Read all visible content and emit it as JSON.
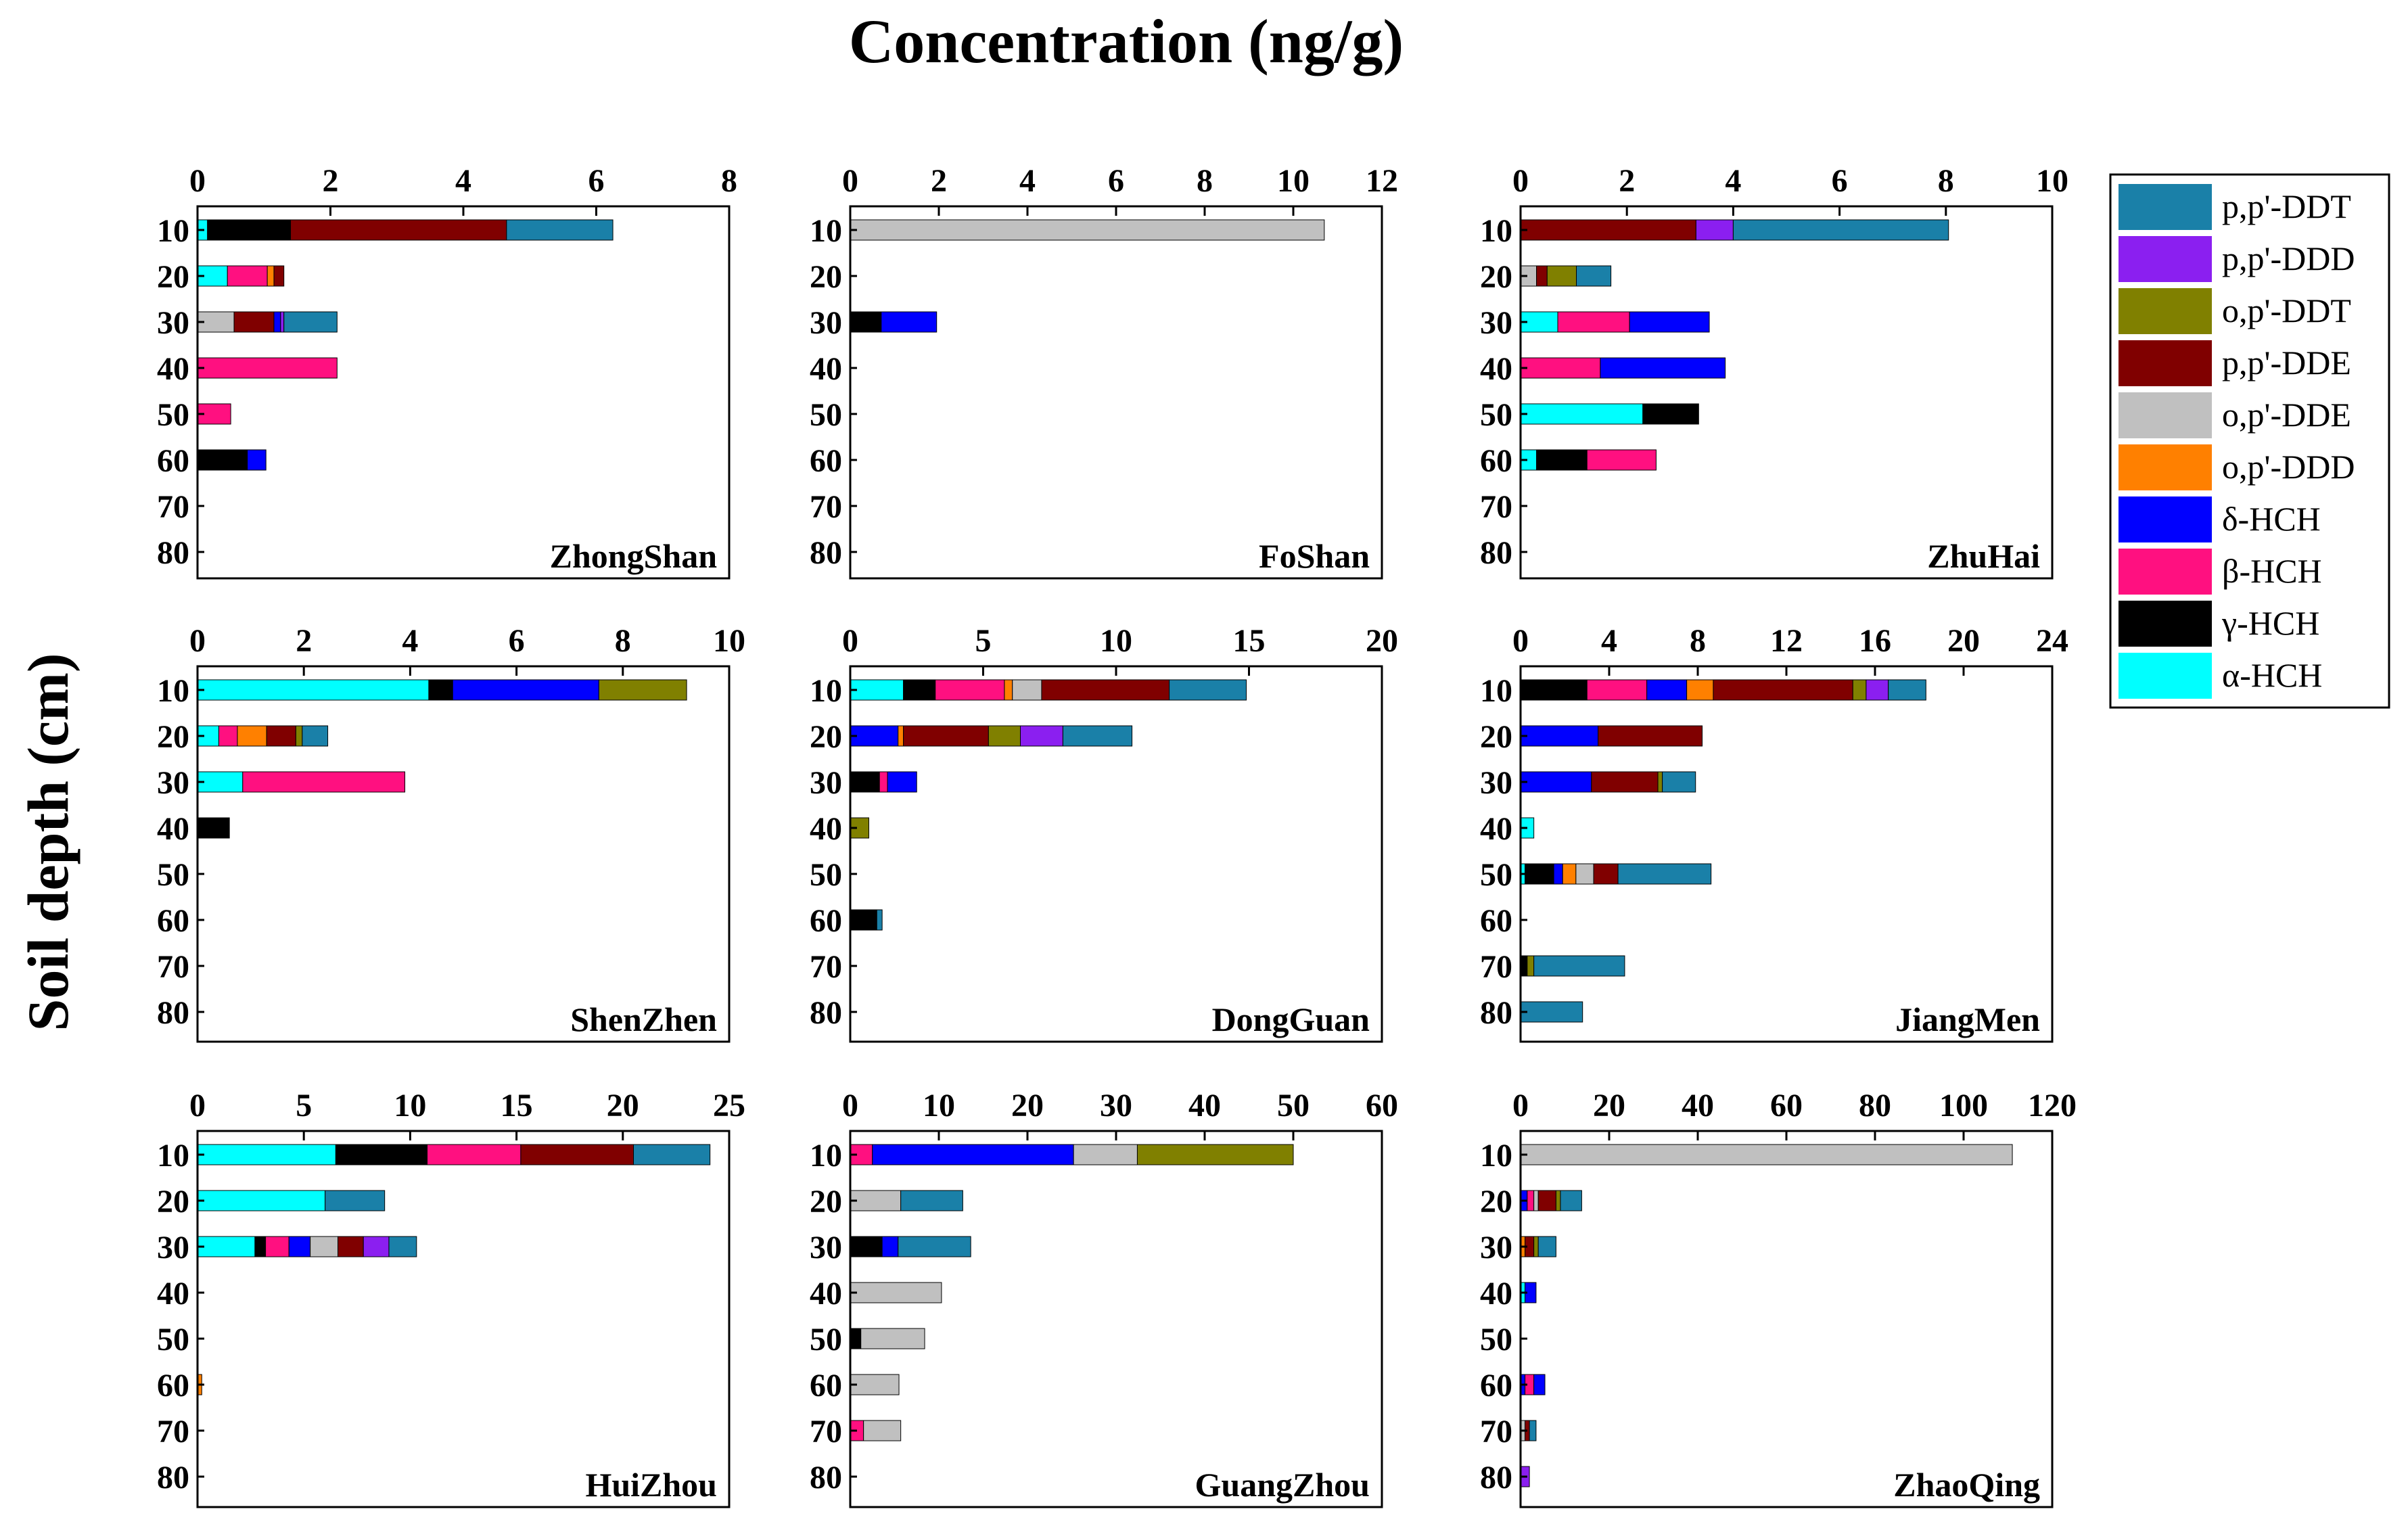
{
  "figure": {
    "title": "Concentration (ng/g)",
    "ylabel": "Soil depth (cm)"
  },
  "chart_data": {
    "type": "bar",
    "stacked": true,
    "orientation": "horizontal",
    "depths": [
      "10",
      "20",
      "30",
      "40",
      "50",
      "60",
      "70",
      "80"
    ],
    "stack_order": [
      "α-HCH",
      "γ-HCH",
      "β-HCH",
      "δ-HCH",
      "o,p'-DDD",
      "o,p'-DDE",
      "p,p'-DDE",
      "o,p'-DDT",
      "p,p'-DDD",
      "p,p'-DDT"
    ],
    "legend": [
      {
        "name": "p,p'-DDT",
        "color": "#1a80a8"
      },
      {
        "name": "p,p'-DDD",
        "color": "#8b1ff0"
      },
      {
        "name": "o,p'-DDT",
        "color": "#808000"
      },
      {
        "name": "p,p'-DDE",
        "color": "#800000"
      },
      {
        "name": "o,p'-DDE",
        "color": "#c0c0c0"
      },
      {
        "name": "o,p'-DDD",
        "color": "#ff8000"
      },
      {
        "name": "δ-HCH",
        "color": "#0000ff"
      },
      {
        "name": "β-HCH",
        "color": "#ff1080"
      },
      {
        "name": "γ-HCH",
        "color": "#000000"
      },
      {
        "name": "α-HCH",
        "color": "#00ffff"
      }
    ],
    "panels": [
      {
        "name": "ZhongShan",
        "xlim": [
          0,
          8
        ],
        "ticks": [
          "0",
          "2",
          "4",
          "6",
          "8"
        ],
        "bars": [
          {
            "depth": "10",
            "segments": [
              [
                "α-HCH",
                0.15
              ],
              [
                "γ-HCH",
                1.25
              ],
              [
                "p,p'-DDE",
                3.25
              ],
              [
                "p,p'-DDT",
                1.6
              ]
            ]
          },
          {
            "depth": "20",
            "segments": [
              [
                "α-HCH",
                0.45
              ],
              [
                "β-HCH",
                0.6
              ],
              [
                "o,p'-DDD",
                0.1
              ],
              [
                "p,p'-DDE",
                0.15
              ]
            ]
          },
          {
            "depth": "30",
            "segments": [
              [
                "o,p'-DDE",
                0.55
              ],
              [
                "p,p'-DDE",
                0.6
              ],
              [
                "δ-HCH",
                0.1
              ],
              [
                "p,p'-DDD",
                0.05
              ],
              [
                "p,p'-DDT",
                0.8
              ]
            ]
          },
          {
            "depth": "40",
            "segments": [
              [
                "β-HCH",
                2.1
              ]
            ]
          },
          {
            "depth": "50",
            "segments": [
              [
                "β-HCH",
                0.5
              ]
            ]
          },
          {
            "depth": "60",
            "segments": [
              [
                "γ-HCH",
                0.75
              ],
              [
                "δ-HCH",
                0.28
              ]
            ]
          }
        ]
      },
      {
        "name": "FoShan",
        "xlim": [
          0,
          12
        ],
        "ticks": [
          "0",
          "2",
          "4",
          "6",
          "8",
          "10",
          "12"
        ],
        "bars": [
          {
            "depth": "10",
            "segments": [
              [
                "o,p'-DDE",
                10.7
              ]
            ]
          },
          {
            "depth": "30",
            "segments": [
              [
                "γ-HCH",
                0.7
              ],
              [
                "δ-HCH",
                1.25
              ]
            ]
          }
        ]
      },
      {
        "name": "ZhuHai",
        "xlim": [
          0,
          10
        ],
        "ticks": [
          "0",
          "2",
          "4",
          "6",
          "8",
          "10"
        ],
        "bars": [
          {
            "depth": "10",
            "segments": [
              [
                "p,p'-DDE",
                3.3
              ],
              [
                "p,p'-DDD",
                0.7
              ],
              [
                "p,p'-DDT",
                4.05
              ]
            ]
          },
          {
            "depth": "20",
            "segments": [
              [
                "o,p'-DDE",
                0.3
              ],
              [
                "p,p'-DDE",
                0.2
              ],
              [
                "o,p'-DDT",
                0.55
              ],
              [
                "p,p'-DDT",
                0.65
              ]
            ]
          },
          {
            "depth": "30",
            "segments": [
              [
                "α-HCH",
                0.7
              ],
              [
                "β-HCH",
                1.35
              ],
              [
                "δ-HCH",
                1.5
              ]
            ]
          },
          {
            "depth": "40",
            "segments": [
              [
                "β-HCH",
                1.5
              ],
              [
                "δ-HCH",
                2.35
              ]
            ]
          },
          {
            "depth": "50",
            "segments": [
              [
                "α-HCH",
                2.3
              ],
              [
                "γ-HCH",
                1.05
              ]
            ]
          },
          {
            "depth": "60",
            "segments": [
              [
                "α-HCH",
                0.3
              ],
              [
                "γ-HCH",
                0.95
              ],
              [
                "β-HCH",
                1.3
              ]
            ]
          }
        ]
      },
      {
        "name": "ShenZhen",
        "xlim": [
          0,
          10
        ],
        "ticks": [
          "0",
          "2",
          "4",
          "6",
          "8",
          "10"
        ],
        "bars": [
          {
            "depth": "10",
            "segments": [
              [
                "α-HCH",
                4.35
              ],
              [
                "γ-HCH",
                0.45
              ],
              [
                "δ-HCH",
                2.75
              ],
              [
                "o,p'-DDT",
                1.65
              ]
            ]
          },
          {
            "depth": "20",
            "segments": [
              [
                "α-HCH",
                0.4
              ],
              [
                "β-HCH",
                0.35
              ],
              [
                "o,p'-DDD",
                0.55
              ],
              [
                "p,p'-DDE",
                0.55
              ],
              [
                "o,p'-DDT",
                0.12
              ],
              [
                "p,p'-DDT",
                0.48
              ]
            ]
          },
          {
            "depth": "30",
            "segments": [
              [
                "α-HCH",
                0.85
              ],
              [
                "β-HCH",
                3.05
              ]
            ]
          },
          {
            "depth": "40",
            "segments": [
              [
                "γ-HCH",
                0.6
              ]
            ]
          }
        ]
      },
      {
        "name": "DongGuan",
        "xlim": [
          0,
          20
        ],
        "ticks": [
          "0",
          "5",
          "10",
          "15",
          "20"
        ],
        "bars": [
          {
            "depth": "10",
            "segments": [
              [
                "α-HCH",
                2.0
              ],
              [
                "γ-HCH",
                1.2
              ],
              [
                "β-HCH",
                2.6
              ],
              [
                "o,p'-DDD",
                0.3
              ],
              [
                "o,p'-DDE",
                1.1
              ],
              [
                "p,p'-DDE",
                4.8
              ],
              [
                "p,p'-DDT",
                2.9
              ]
            ]
          },
          {
            "depth": "20",
            "segments": [
              [
                "δ-HCH",
                1.8
              ],
              [
                "o,p'-DDD",
                0.2
              ],
              [
                "p,p'-DDE",
                3.2
              ],
              [
                "o,p'-DDT",
                1.2
              ],
              [
                "p,p'-DDD",
                1.6
              ],
              [
                "p,p'-DDT",
                2.6
              ]
            ]
          },
          {
            "depth": "30",
            "segments": [
              [
                "γ-HCH",
                1.1
              ],
              [
                "β-HCH",
                0.3
              ],
              [
                "δ-HCH",
                1.1
              ]
            ]
          },
          {
            "depth": "40",
            "segments": [
              [
                "o,p'-DDT",
                0.7
              ]
            ]
          },
          {
            "depth": "60",
            "segments": [
              [
                "γ-HCH",
                1.0
              ],
              [
                "p,p'-DDT",
                0.2
              ]
            ]
          }
        ]
      },
      {
        "name": "JiangMen",
        "xlim": [
          0,
          24
        ],
        "ticks": [
          "0",
          "4",
          "8",
          "12",
          "16",
          "20",
          "24"
        ],
        "bars": [
          {
            "depth": "10",
            "segments": [
              [
                "γ-HCH",
                3.0
              ],
              [
                "β-HCH",
                2.7
              ],
              [
                "δ-HCH",
                1.8
              ],
              [
                "o,p'-DDD",
                1.2
              ],
              [
                "p,p'-DDE",
                6.3
              ],
              [
                "o,p'-DDT",
                0.6
              ],
              [
                "p,p'-DDD",
                1.0
              ],
              [
                "p,p'-DDT",
                1.7
              ]
            ]
          },
          {
            "depth": "20",
            "segments": [
              [
                "δ-HCH",
                3.5
              ],
              [
                "p,p'-DDE",
                4.7
              ]
            ]
          },
          {
            "depth": "30",
            "segments": [
              [
                "δ-HCH",
                3.2
              ],
              [
                "p,p'-DDE",
                3.0
              ],
              [
                "o,p'-DDT",
                0.2
              ],
              [
                "p,p'-DDT",
                1.5
              ]
            ]
          },
          {
            "depth": "40",
            "segments": [
              [
                "α-HCH",
                0.6
              ]
            ]
          },
          {
            "depth": "50",
            "segments": [
              [
                "α-HCH",
                0.2
              ],
              [
                "γ-HCH",
                1.3
              ],
              [
                "δ-HCH",
                0.4
              ],
              [
                "o,p'-DDD",
                0.6
              ],
              [
                "o,p'-DDE",
                0.8
              ],
              [
                "p,p'-DDE",
                1.1
              ],
              [
                "p,p'-DDT",
                4.2
              ]
            ]
          },
          {
            "depth": "70",
            "segments": [
              [
                "γ-HCH",
                0.3
              ],
              [
                "o,p'-DDT",
                0.3
              ],
              [
                "p,p'-DDT",
                4.1
              ]
            ]
          },
          {
            "depth": "80",
            "segments": [
              [
                "p,p'-DDT",
                2.8
              ]
            ]
          }
        ]
      },
      {
        "name": "HuiZhou",
        "xlim": [
          0,
          25
        ],
        "ticks": [
          "0",
          "5",
          "10",
          "15",
          "20",
          "25"
        ],
        "bars": [
          {
            "depth": "10",
            "segments": [
              [
                "α-HCH",
                6.5
              ],
              [
                "γ-HCH",
                4.3
              ],
              [
                "β-HCH",
                4.4
              ],
              [
                "p,p'-DDE",
                5.3
              ],
              [
                "p,p'-DDT",
                3.6
              ]
            ]
          },
          {
            "depth": "20",
            "segments": [
              [
                "α-HCH",
                6.0
              ],
              [
                "p,p'-DDT",
                2.8
              ]
            ]
          },
          {
            "depth": "30",
            "segments": [
              [
                "α-HCH",
                2.7
              ],
              [
                "γ-HCH",
                0.5
              ],
              [
                "β-HCH",
                1.1
              ],
              [
                "δ-HCH",
                1.0
              ],
              [
                "o,p'-DDE",
                1.3
              ],
              [
                "p,p'-DDE",
                1.2
              ],
              [
                "p,p'-DDD",
                1.2
              ],
              [
                "p,p'-DDT",
                1.3
              ]
            ]
          },
          {
            "depth": "60",
            "segments": [
              [
                "o,p'-DDD",
                0.2
              ]
            ]
          }
        ]
      },
      {
        "name": "GuangZhou",
        "xlim": [
          0,
          60
        ],
        "ticks": [
          "0",
          "10",
          "20",
          "30",
          "40",
          "50",
          "60"
        ],
        "bars": [
          {
            "depth": "10",
            "segments": [
              [
                "β-HCH",
                2.5
              ],
              [
                "δ-HCH",
                22.7
              ],
              [
                "o,p'-DDE",
                7.2
              ],
              [
                "o,p'-DDT",
                17.6
              ]
            ]
          },
          {
            "depth": "20",
            "segments": [
              [
                "o,p'-DDE",
                5.7
              ],
              [
                "p,p'-DDT",
                7.0
              ]
            ]
          },
          {
            "depth": "30",
            "segments": [
              [
                "γ-HCH",
                3.6
              ],
              [
                "δ-HCH",
                1.8
              ],
              [
                "p,p'-DDT",
                8.2
              ]
            ]
          },
          {
            "depth": "40",
            "segments": [
              [
                "o,p'-DDE",
                10.3
              ]
            ]
          },
          {
            "depth": "50",
            "segments": [
              [
                "γ-HCH",
                1.2
              ],
              [
                "o,p'-DDE",
                7.2
              ]
            ]
          },
          {
            "depth": "60",
            "segments": [
              [
                "o,p'-DDE",
                5.5
              ]
            ]
          },
          {
            "depth": "70",
            "segments": [
              [
                "β-HCH",
                1.5
              ],
              [
                "o,p'-DDE",
                4.2
              ]
            ]
          }
        ]
      },
      {
        "name": "ZhaoQing",
        "xlim": [
          0,
          120
        ],
        "ticks": [
          "0",
          "20",
          "40",
          "60",
          "80",
          "100",
          "120"
        ],
        "bars": [
          {
            "depth": "10",
            "segments": [
              [
                "o,p'-DDE",
                111.0
              ]
            ]
          },
          {
            "depth": "20",
            "segments": [
              [
                "δ-HCH",
                1.5
              ],
              [
                "β-HCH",
                1.5
              ],
              [
                "o,p'-DDE",
                1.0
              ],
              [
                "p,p'-DDE",
                4.0
              ],
              [
                "o,p'-DDT",
                1.0
              ],
              [
                "p,p'-DDT",
                4.8
              ]
            ]
          },
          {
            "depth": "30",
            "segments": [
              [
                "o,p'-DDD",
                1.0
              ],
              [
                "p,p'-DDE",
                2.0
              ],
              [
                "o,p'-DDT",
                1.0
              ],
              [
                "p,p'-DDT",
                4.0
              ]
            ]
          },
          {
            "depth": "40",
            "segments": [
              [
                "α-HCH",
                1.0
              ],
              [
                "δ-HCH",
                2.5
              ]
            ]
          },
          {
            "depth": "60",
            "segments": [
              [
                "δ-HCH",
                1.0
              ],
              [
                "β-HCH",
                2.0
              ],
              [
                "δ-HCH",
                2.5
              ]
            ]
          },
          {
            "depth": "70",
            "segments": [
              [
                "o,p'-DDE",
                1.0
              ],
              [
                "p,p'-DDE",
                1.0
              ],
              [
                "p,p'-DDT",
                1.5
              ]
            ]
          },
          {
            "depth": "80",
            "segments": [
              [
                "p,p'-DDD",
                2.0
              ]
            ]
          }
        ]
      }
    ]
  }
}
